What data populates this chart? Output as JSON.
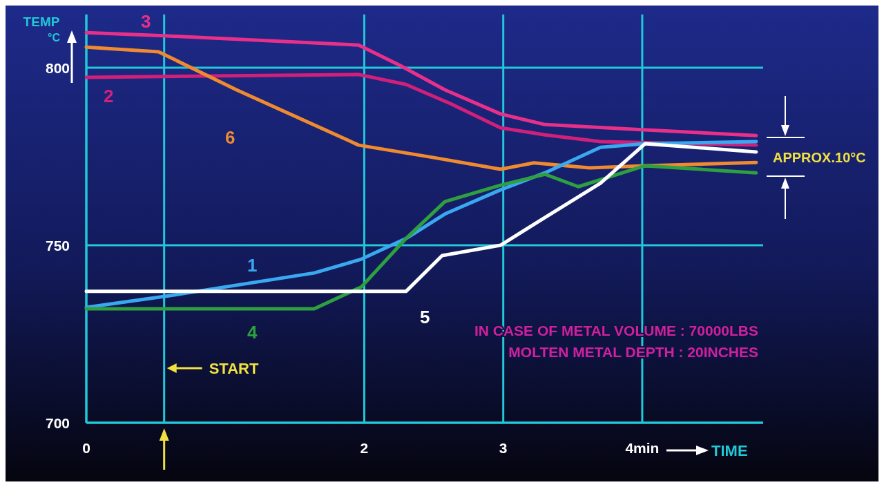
{
  "chart_data": {
    "type": "line",
    "xlabel": "TIME",
    "ylabel": "TEMP °C",
    "xlim": [
      0,
      4.87
    ],
    "xticks": [
      0,
      2,
      3,
      {
        "value": 4,
        "label": "4min"
      }
    ],
    "ylim": [
      700,
      815
    ],
    "yticks": [
      700,
      750,
      800
    ],
    "grid": true,
    "marker": "none",
    "line_style": "solid",
    "series": [
      {
        "name": "3",
        "color": "#e8308a",
        "x": [
          0,
          0.56,
          1.96,
          2.26,
          2.58,
          2.98,
          3.3,
          4.02,
          4.82
        ],
        "values": [
          809.9,
          809,
          806.4,
          800.6,
          793.8,
          787,
          784,
          782.5,
          780.9
        ]
      },
      {
        "name": "2",
        "color": "#d0207a",
        "x": [
          0,
          1.96,
          2.3,
          2.62,
          2.98,
          3.3,
          3.7,
          4.82
        ],
        "values": [
          797.3,
          798.1,
          795.3,
          789.9,
          783.1,
          781.1,
          779.2,
          778.2
        ]
      },
      {
        "name": "6",
        "color": "#f08a30",
        "x": [
          0,
          0.52,
          1.08,
          1.96,
          2.5,
          2.98,
          3.22,
          3.62,
          4.02,
          4.82
        ],
        "values": [
          805.8,
          804.5,
          793.8,
          778.2,
          774.7,
          771.4,
          773.2,
          771.8,
          772.4,
          773.3
        ]
      },
      {
        "name": "1",
        "color": "#3aa8f0",
        "x": [
          0,
          0.6,
          1.64,
          1.98,
          2.3,
          2.58,
          2.98,
          3.3,
          3.7,
          4.02,
          4.82
        ],
        "values": [
          732.5,
          735.8,
          742.2,
          746.1,
          751.9,
          758.8,
          765.6,
          770.4,
          777.6,
          778.6,
          779.2
        ]
      },
      {
        "name": "4",
        "color": "#2ea040",
        "x": [
          0,
          1.64,
          1.98,
          2.3,
          2.58,
          2.98,
          3.3,
          3.54,
          4.02,
          4.82
        ],
        "values": [
          732.1,
          732.1,
          738.3,
          751.9,
          762.3,
          766.9,
          770,
          766.5,
          772.4,
          770.4
        ]
      },
      {
        "name": "5",
        "color": "#ffffff",
        "x": [
          0,
          2.3,
          2.56,
          2.98,
          3.3,
          3.7,
          4.02,
          4.82
        ],
        "values": [
          737,
          737,
          747.1,
          750,
          757.8,
          767.5,
          778.6,
          776.3
        ]
      }
    ],
    "ref_lines": [
      {
        "axis": "x",
        "value": 0.56,
        "label": "START",
        "color": "#20c8d8"
      }
    ],
    "annotations": [
      "APPROX.10°C",
      "IN CASE OF METAL VOLUME : 70000LBS",
      "MOLTEN METAL DEPTH : 20INCHES"
    ]
  }
}
